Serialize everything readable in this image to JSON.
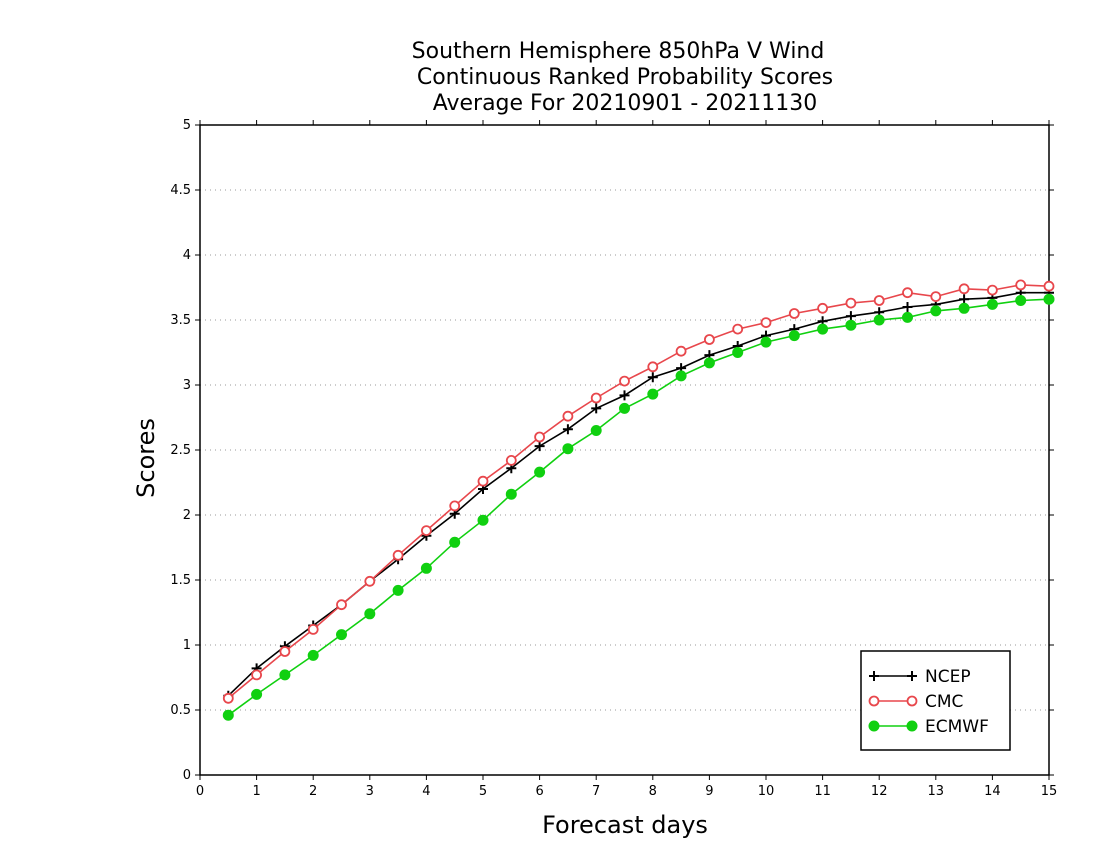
{
  "chart_data": {
    "type": "line",
    "title_lines": [
      "Southern Hemisphere 850hPa V Wind",
      "Continuous Ranked Probability Scores",
      "Average For 20210901 - 20211130"
    ],
    "xlabel": "Forecast days",
    "ylabel": "Scores",
    "xlim": [
      0,
      15
    ],
    "ylim": [
      0,
      5
    ],
    "x_ticks": [
      "0",
      "1",
      "2",
      "3",
      "4",
      "5",
      "6",
      "7",
      "8",
      "9",
      "10",
      "11",
      "12",
      "13",
      "14",
      "15"
    ],
    "y_ticks": [
      "0",
      "0.5",
      "1",
      "1.5",
      "2",
      "2.5",
      "3",
      "3.5",
      "4",
      "4.5",
      "5"
    ],
    "grid": "dotted-horizontal",
    "legend_position": "bottom-right",
    "x": [
      0.5,
      1,
      1.5,
      2,
      2.5,
      3,
      3.5,
      4,
      4.5,
      5,
      5.5,
      6,
      6.5,
      7,
      7.5,
      8,
      8.5,
      9,
      9.5,
      10,
      10.5,
      11,
      11.5,
      12,
      12.5,
      13,
      13.5,
      14,
      14.5,
      15
    ],
    "series": [
      {
        "name": "NCEP",
        "color": "#000000",
        "marker": "plus",
        "values": [
          0.61,
          0.82,
          0.99,
          1.15,
          1.31,
          1.49,
          1.66,
          1.84,
          2.01,
          2.2,
          2.36,
          2.53,
          2.66,
          2.82,
          2.92,
          3.06,
          3.13,
          3.23,
          3.3,
          3.38,
          3.43,
          3.49,
          3.53,
          3.56,
          3.6,
          3.62,
          3.66,
          3.67,
          3.71,
          3.71
        ]
      },
      {
        "name": "CMC",
        "color": "#e8474c",
        "marker": "open-circle",
        "values": [
          0.59,
          0.77,
          0.95,
          1.12,
          1.31,
          1.49,
          1.69,
          1.88,
          2.07,
          2.26,
          2.42,
          2.6,
          2.76,
          2.9,
          3.03,
          3.14,
          3.26,
          3.35,
          3.43,
          3.48,
          3.55,
          3.59,
          3.63,
          3.65,
          3.71,
          3.68,
          3.74,
          3.73,
          3.77,
          3.76
        ]
      },
      {
        "name": "ECMWF",
        "color": "#10d010",
        "marker": "filled-circle",
        "values": [
          0.46,
          0.62,
          0.77,
          0.92,
          1.08,
          1.24,
          1.42,
          1.59,
          1.79,
          1.96,
          2.16,
          2.33,
          2.51,
          2.65,
          2.82,
          2.93,
          3.07,
          3.17,
          3.25,
          3.33,
          3.38,
          3.43,
          3.46,
          3.5,
          3.52,
          3.57,
          3.59,
          3.62,
          3.65,
          3.66
        ]
      }
    ]
  }
}
